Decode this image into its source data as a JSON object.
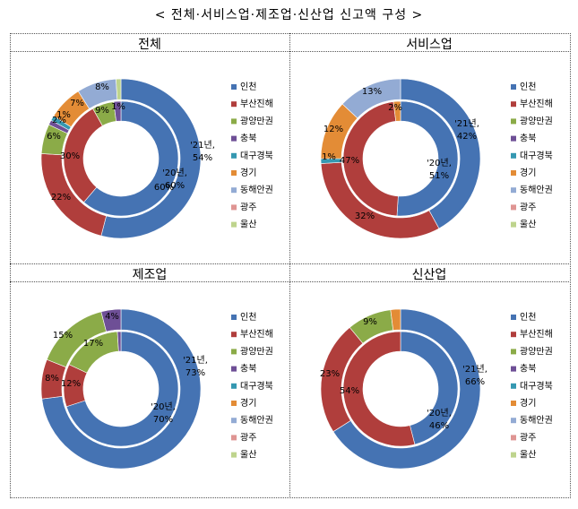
{
  "page_title": "< 전체·서비스업·제조업·신산업 신고액 구성 >",
  "legend": [
    "인천",
    "부산진해",
    "광양만권",
    "충북",
    "대구경북",
    "경기",
    "동해안권",
    "광주",
    "울산"
  ],
  "colors": [
    "#4573b3",
    "#b03e3c",
    "#8bab48",
    "#6e4f96",
    "#3598b1",
    "#e38c36",
    "#93abd4",
    "#df9593",
    "#bed48d"
  ],
  "chart_data": [
    {
      "type": "donut",
      "title": "전체",
      "inner_label": "'20년,",
      "inner_value_label": "60%",
      "outer_label": "'21년,",
      "outer_value_label": "54%",
      "inner": [
        60,
        30,
        6,
        2,
        0,
        0,
        0,
        0,
        0
      ],
      "outer": [
        54,
        22,
        6,
        1,
        1,
        7,
        8,
        0,
        1
      ],
      "labels": [
        {
          "text": "60%"
        },
        {
          "text": "30%"
        },
        {
          "text": "6%"
        },
        {
          "text": "2%"
        },
        {
          "text": "22%"
        },
        {
          "text": "1%"
        },
        {
          "text": "7%"
        },
        {
          "text": "9%"
        },
        {
          "text": "1%"
        },
        {
          "text": "8%"
        }
      ]
    },
    {
      "type": "donut",
      "title": "서비스업",
      "inner_label": "'20년,",
      "inner_value_label": "51%",
      "outer_label": "'21년,",
      "outer_value_label": "42%",
      "inner": [
        51,
        47,
        0,
        0,
        0,
        2,
        0,
        0,
        0
      ],
      "outer": [
        42,
        32,
        0,
        0,
        1,
        12,
        13,
        0,
        0
      ],
      "labels": [
        {
          "text": "47%"
        },
        {
          "text": "2%"
        },
        {
          "text": "32%"
        },
        {
          "text": "1%"
        },
        {
          "text": "12%"
        },
        {
          "text": "13%"
        }
      ]
    },
    {
      "type": "donut",
      "title": "제조업",
      "inner_label": "'20년,",
      "inner_value_label": "70%",
      "outer_label": "'21년,",
      "outer_value_label": "73%",
      "inner": [
        70,
        12,
        17,
        1,
        0,
        0,
        0,
        0,
        0
      ],
      "outer": [
        73,
        8,
        15,
        4,
        0,
        0,
        0,
        0,
        0
      ],
      "labels": [
        {
          "text": "12%"
        },
        {
          "text": "17%"
        },
        {
          "text": "8%"
        },
        {
          "text": "15%"
        },
        {
          "text": "4%"
        }
      ]
    },
    {
      "type": "donut",
      "title": "신산업",
      "inner_label": "'20년,",
      "inner_value_label": "46%",
      "outer_label": "'21년,",
      "outer_value_label": "66%",
      "inner": [
        46,
        54,
        0,
        0,
        0,
        0,
        0,
        0,
        0
      ],
      "outer": [
        66,
        23,
        9,
        0,
        0,
        2,
        0,
        0,
        0
      ],
      "labels": [
        {
          "text": "54%"
        },
        {
          "text": "23%"
        },
        {
          "text": "9%"
        }
      ]
    }
  ]
}
